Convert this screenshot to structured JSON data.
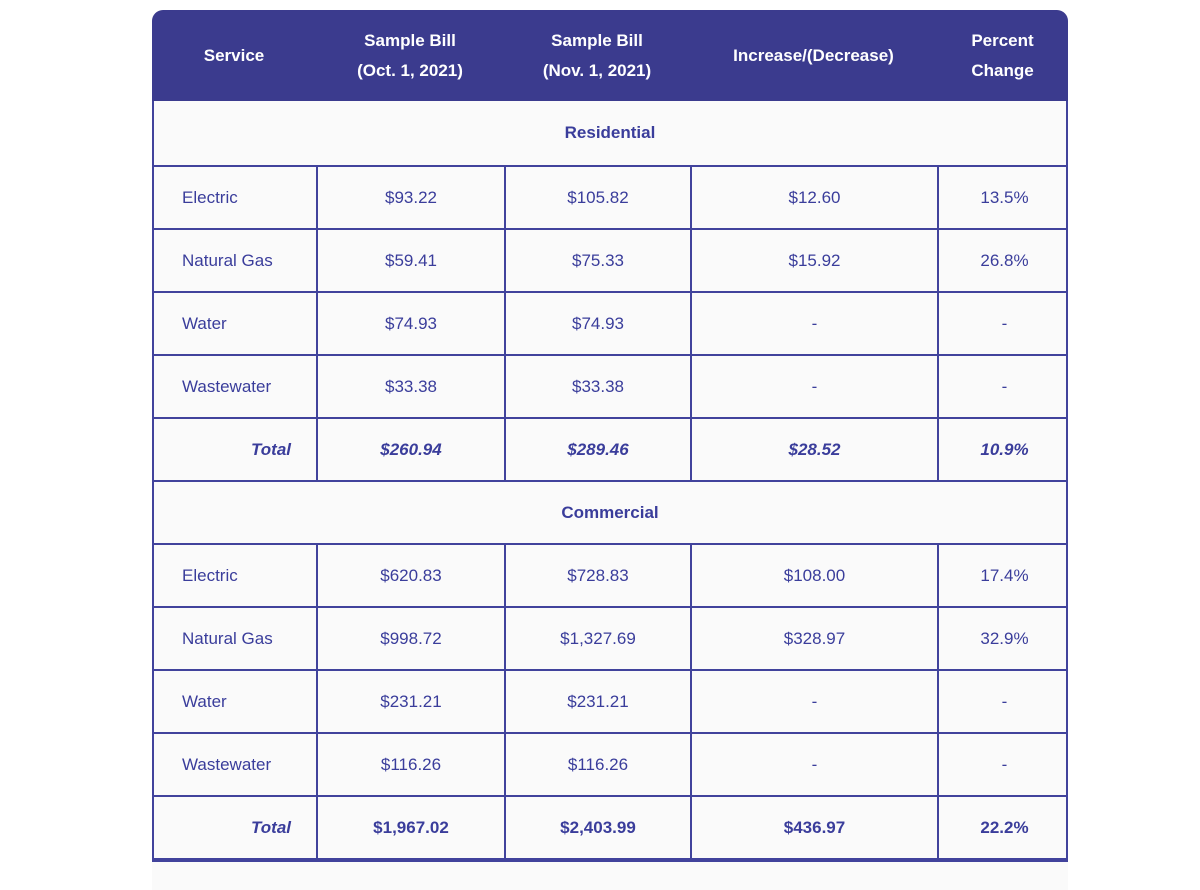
{
  "palette": {
    "header_bg": "#3b3b8e",
    "header_text": "#ffffff",
    "body_text": "#3a3d9b",
    "border": "#41439c",
    "row_bg": "#fafafa",
    "page_bg": "#ffffff"
  },
  "header": {
    "cols": [
      {
        "lines": [
          "Service"
        ]
      },
      {
        "lines": [
          "Sample Bill",
          "(Oct. 1, 2021)"
        ]
      },
      {
        "lines": [
          "Sample Bill",
          "(Nov. 1, 2021)"
        ]
      },
      {
        "lines": [
          "Increase/(Decrease)"
        ]
      },
      {
        "lines": [
          "Percent",
          "Change"
        ]
      }
    ]
  },
  "chart_data": {
    "type": "table",
    "columns": [
      "Service",
      "Sample Bill (Oct. 1, 2021)",
      "Sample Bill (Nov. 1, 2021)",
      "Increase/(Decrease)",
      "Percent Change"
    ],
    "sections": [
      {
        "label": "Residential",
        "rows": [
          {
            "cells": [
              "Electric",
              "$93.22",
              "$105.82",
              "$12.60",
              "13.5%"
            ],
            "total": false
          },
          {
            "cells": [
              "Natural Gas",
              "$59.41",
              "$75.33",
              "$15.92",
              "26.8%"
            ],
            "total": false
          },
          {
            "cells": [
              "Water",
              "$74.93",
              "$74.93",
              "-",
              "-"
            ],
            "total": false
          },
          {
            "cells": [
              "Wastewater",
              "$33.38",
              "$33.38",
              "-",
              "-"
            ],
            "total": false
          },
          {
            "cells": [
              "Total",
              "$260.94",
              "$289.46",
              "$28.52",
              "10.9%"
            ],
            "total": true,
            "italic_values": true
          }
        ]
      },
      {
        "label": "Commercial",
        "rows": [
          {
            "cells": [
              "Electric",
              "$620.83",
              "$728.83",
              "$108.00",
              "17.4%"
            ],
            "total": false
          },
          {
            "cells": [
              "Natural Gas",
              "$998.72",
              "$1,327.69",
              "$328.97",
              "32.9%"
            ],
            "total": false
          },
          {
            "cells": [
              "Water",
              "$231.21",
              "$231.21",
              "-",
              "-"
            ],
            "total": false
          },
          {
            "cells": [
              "Wastewater",
              "$116.26",
              "$116.26",
              "-",
              "-"
            ],
            "total": false
          },
          {
            "cells": [
              "Total",
              "$1,967.02",
              "$2,403.99",
              "$436.97",
              "22.2%"
            ],
            "total": true,
            "italic_values": false
          }
        ]
      }
    ]
  }
}
